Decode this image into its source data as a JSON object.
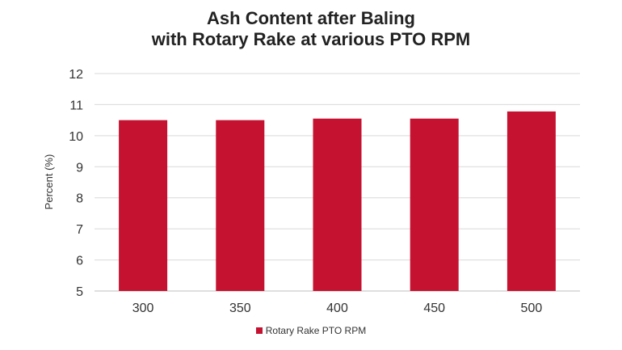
{
  "chart_data": {
    "type": "bar",
    "title": "Ash Content after Baling",
    "subtitle": "with Rotary Rake at various PTO RPM",
    "xlabel": "",
    "ylabel": "Percent (%)",
    "categories": [
      "300",
      "350",
      "400",
      "450",
      "500"
    ],
    "series": [
      {
        "name": "Rotary Rake PTO RPM",
        "values": [
          10.5,
          10.5,
          10.55,
          10.55,
          10.78
        ],
        "color": "#c41230"
      }
    ],
    "ylim": [
      5,
      12
    ],
    "yticks": [
      "5",
      "6",
      "7",
      "8",
      "9",
      "10",
      "11",
      "12"
    ],
    "grid": true,
    "legend": "bottom"
  }
}
